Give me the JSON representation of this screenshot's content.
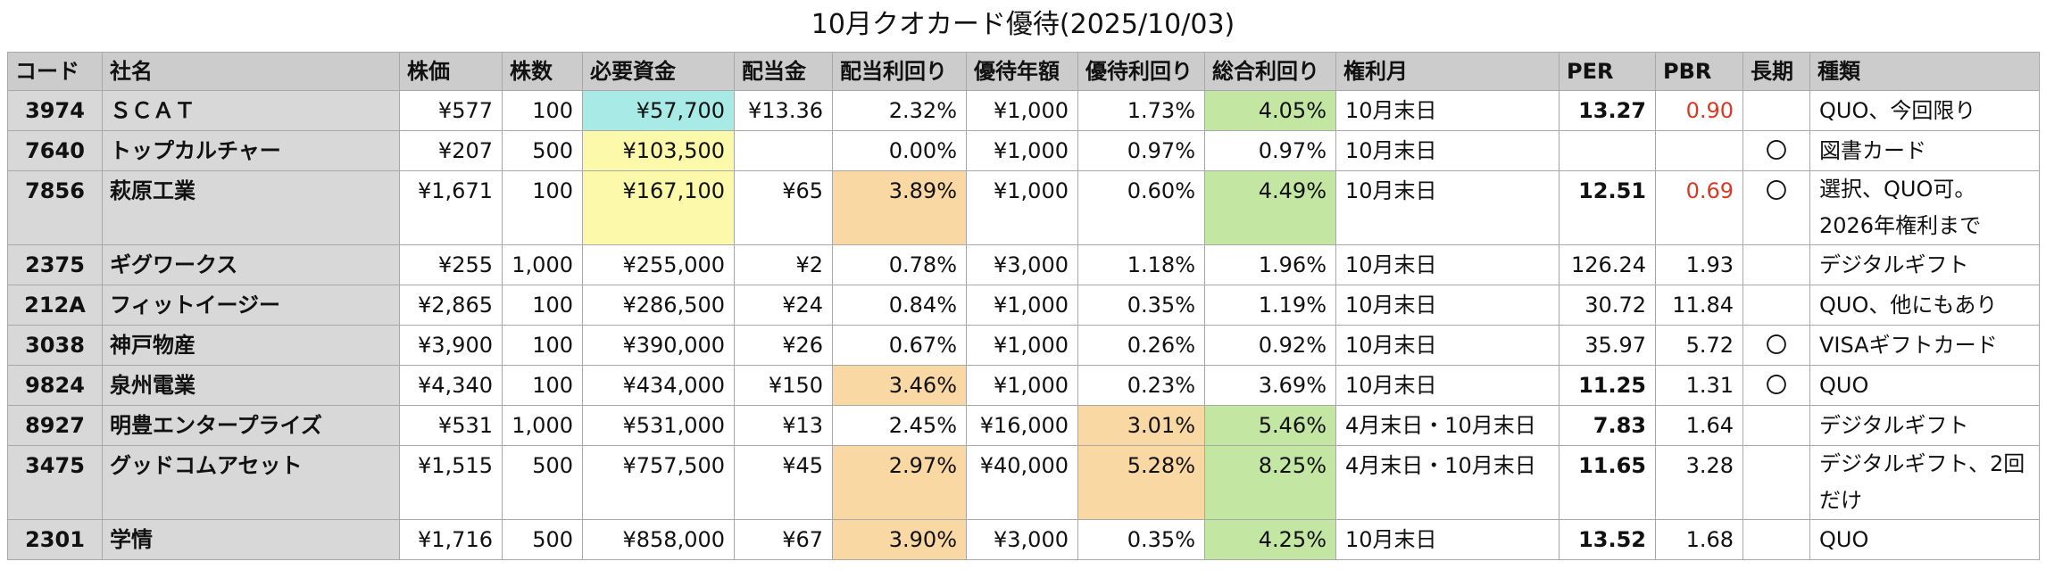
{
  "title": "10月クオカード優待(2025/10/03)",
  "headers": [
    "コード",
    "社名",
    "株価",
    "株数",
    "必要資金",
    "配当金",
    "配当利回り",
    "優待年額",
    "優待利回り",
    "総合利回り",
    "権利月",
    "PER",
    "PBR",
    "長期",
    "種類"
  ],
  "colors": {
    "cyan": "#a8ebe6",
    "yellow": "#fcf9aa",
    "orange": "#f9d8a4",
    "green": "#c3e6a2",
    "red_text": "#d93a25",
    "header_bg": "#cccccc",
    "key_bg": "#d8d8d8"
  },
  "rows": [
    {
      "code": "3974",
      "name": "ＳＣＡＴ",
      "price": "¥577",
      "shares": "100",
      "capital": "¥57,700",
      "dividend": "¥13.36",
      "div_yield": "2.32%",
      "perk_amount": "¥1,000",
      "perk_yield": "1.73%",
      "total_yield": "4.05%",
      "rights_month": "10月末日",
      "per": "13.27",
      "pbr": "0.90",
      "long_term": "",
      "type": "QUO、今回限り"
    },
    {
      "code": "7640",
      "name": "トップカルチャー",
      "price": "¥207",
      "shares": "500",
      "capital": "¥103,500",
      "dividend": "",
      "div_yield": "0.00%",
      "perk_amount": "¥1,000",
      "perk_yield": "0.97%",
      "total_yield": "0.97%",
      "rights_month": "10月末日",
      "per": "",
      "pbr": "",
      "long_term": "〇",
      "type": "図書カード"
    },
    {
      "code": "7856",
      "name": "萩原工業",
      "price": "¥1,671",
      "shares": "100",
      "capital": "¥167,100",
      "dividend": "¥65",
      "div_yield": "3.89%",
      "perk_amount": "¥1,000",
      "perk_yield": "0.60%",
      "total_yield": "4.49%",
      "rights_month": "10月末日",
      "per": "12.51",
      "pbr": "0.69",
      "long_term": "〇",
      "type": "選択、QUO可。2026年権利まで"
    },
    {
      "code": "2375",
      "name": "ギグワークス",
      "price": "¥255",
      "shares": "1,000",
      "capital": "¥255,000",
      "dividend": "¥2",
      "div_yield": "0.78%",
      "perk_amount": "¥3,000",
      "perk_yield": "1.18%",
      "total_yield": "1.96%",
      "rights_month": "10月末日",
      "per": "126.24",
      "pbr": "1.93",
      "long_term": "",
      "type": "デジタルギフト"
    },
    {
      "code": "212A",
      "name": "フィットイージー",
      "price": "¥2,865",
      "shares": "100",
      "capital": "¥286,500",
      "dividend": "¥24",
      "div_yield": "0.84%",
      "perk_amount": "¥1,000",
      "perk_yield": "0.35%",
      "total_yield": "1.19%",
      "rights_month": "10月末日",
      "per": "30.72",
      "pbr": "11.84",
      "long_term": "",
      "type": "QUO、他にもあり"
    },
    {
      "code": "3038",
      "name": "神戸物産",
      "price": "¥3,900",
      "shares": "100",
      "capital": "¥390,000",
      "dividend": "¥26",
      "div_yield": "0.67%",
      "perk_amount": "¥1,000",
      "perk_yield": "0.26%",
      "total_yield": "0.92%",
      "rights_month": "10月末日",
      "per": "35.97",
      "pbr": "5.72",
      "long_term": "〇",
      "type": "VISAギフトカード"
    },
    {
      "code": "9824",
      "name": "泉州電業",
      "price": "¥4,340",
      "shares": "100",
      "capital": "¥434,000",
      "dividend": "¥150",
      "div_yield": "3.46%",
      "perk_amount": "¥1,000",
      "perk_yield": "0.23%",
      "total_yield": "3.69%",
      "rights_month": "10月末日",
      "per": "11.25",
      "pbr": "1.31",
      "long_term": "〇",
      "type": "QUO"
    },
    {
      "code": "8927",
      "name": "明豊エンタープライズ",
      "price": "¥531",
      "shares": "1,000",
      "capital": "¥531,000",
      "dividend": "¥13",
      "div_yield": "2.45%",
      "perk_amount": "¥16,000",
      "perk_yield": "3.01%",
      "total_yield": "5.46%",
      "rights_month": "4月末日・10月末日",
      "per": "7.83",
      "pbr": "1.64",
      "long_term": "",
      "type": "デジタルギフト"
    },
    {
      "code": "3475",
      "name": "グッドコムアセット",
      "price": "¥1,515",
      "shares": "500",
      "capital": "¥757,500",
      "dividend": "¥45",
      "div_yield": "2.97%",
      "perk_amount": "¥40,000",
      "perk_yield": "5.28%",
      "total_yield": "8.25%",
      "rights_month": "4月末日・10月末日",
      "per": "11.65",
      "pbr": "3.28",
      "long_term": "",
      "type": "デジタルギフト、2回だけ"
    },
    {
      "code": "2301",
      "name": "学情",
      "price": "¥1,716",
      "shares": "500",
      "capital": "¥858,000",
      "dividend": "¥67",
      "div_yield": "3.90%",
      "perk_amount": "¥3,000",
      "perk_yield": "0.35%",
      "total_yield": "4.25%",
      "rights_month": "10月末日",
      "per": "13.52",
      "pbr": "1.68",
      "long_term": "",
      "type": "QUO"
    }
  ]
}
